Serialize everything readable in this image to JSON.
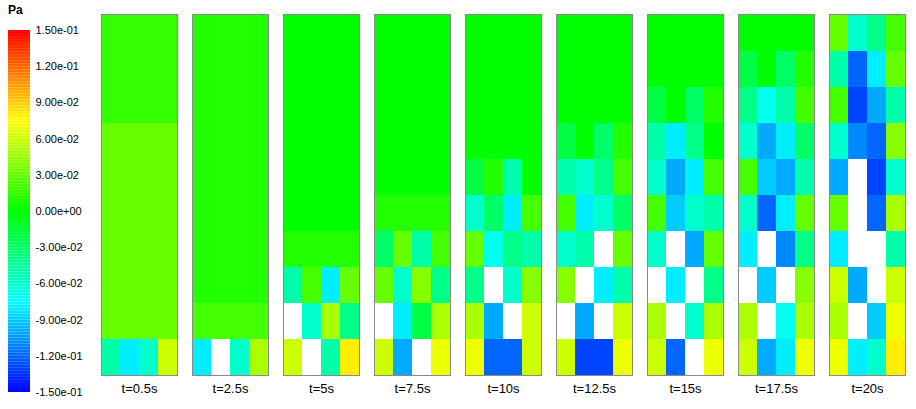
{
  "chart_data": {
    "type": "heatmap",
    "color_bar": {
      "title": "Pa",
      "lim": [
        -0.15,
        0.15
      ],
      "ticks": [
        {
          "value": 0.15,
          "label": "1.50e-01"
        },
        {
          "value": 0.12,
          "label": "1.20e-01"
        },
        {
          "value": 0.09,
          "label": "9.00e-02"
        },
        {
          "value": 0.06,
          "label": "6.00e-02"
        },
        {
          "value": 0.03,
          "label": "3.00e-02"
        },
        {
          "value": 0,
          "label": "0.00e+00"
        },
        {
          "value": -0.03,
          "label": "-3.00e-02"
        },
        {
          "value": -0.06,
          "label": "-6.00e-02"
        },
        {
          "value": -0.09,
          "label": "-9.00e-02"
        },
        {
          "value": -0.12,
          "label": "-1.20e-01"
        },
        {
          "value": -0.15,
          "label": "-1.50e-01"
        }
      ]
    },
    "panels": [
      {
        "label": "t=0.5s",
        "cells": [
          [
            0.015,
            0.015,
            0.015,
            0.015
          ],
          [
            0.015,
            0.015,
            0.015,
            0.015
          ],
          [
            0.015,
            0.015,
            0.015,
            0.015
          ],
          [
            0.03,
            0.03,
            0.03,
            0.03
          ],
          [
            0.03,
            0.03,
            0.03,
            0.03
          ],
          [
            0.03,
            0.03,
            0.03,
            0.03
          ],
          [
            0.03,
            0.03,
            0.03,
            0.03
          ],
          [
            0.03,
            0.03,
            0.03,
            0.03
          ],
          [
            0.03,
            0.03,
            0.03,
            0.03
          ],
          [
            -0.05,
            -0.08,
            -0.06,
            0.06
          ]
        ]
      },
      {
        "label": "t=2.5s",
        "cells": [
          [
            0.01,
            0.01,
            0.01,
            0.01
          ],
          [
            0.01,
            0.01,
            0.01,
            0.01
          ],
          [
            0.01,
            0.01,
            0.01,
            0.01
          ],
          [
            0.01,
            0.01,
            0.01,
            0.01
          ],
          [
            0.01,
            0.01,
            0.01,
            0.01
          ],
          [
            0.01,
            0.01,
            0.01,
            0.01
          ],
          [
            0.01,
            0.01,
            0.01,
            0.01
          ],
          [
            0.01,
            0.01,
            0.01,
            0.01
          ],
          [
            0.02,
            0.02,
            0.02,
            0.02
          ],
          [
            -0.08,
            null,
            -0.06,
            0.05
          ]
        ]
      },
      {
        "label": "t=5s",
        "cells": [
          [
            0,
            0,
            0,
            0
          ],
          [
            0,
            0,
            0,
            0
          ],
          [
            0,
            0,
            0,
            0
          ],
          [
            0,
            0,
            0,
            0
          ],
          [
            0,
            0,
            0,
            0
          ],
          [
            0,
            0,
            0,
            0
          ],
          [
            0.01,
            0.01,
            0.01,
            0.01
          ],
          [
            -0.05,
            0.02,
            -0.08,
            0.03
          ],
          [
            null,
            -0.06,
            0.05,
            -0.04
          ],
          [
            0.06,
            null,
            -0.05,
            0.08
          ]
        ]
      },
      {
        "label": "t=7.5s",
        "cells": [
          [
            0,
            0,
            0,
            0
          ],
          [
            0,
            0,
            0,
            0
          ],
          [
            0,
            0,
            0,
            0
          ],
          [
            0,
            0,
            0,
            0
          ],
          [
            0,
            0,
            0,
            0
          ],
          [
            0.01,
            0.01,
            0.01,
            0.01
          ],
          [
            -0.03,
            0.03,
            -0.05,
            0.02
          ],
          [
            0.03,
            -0.06,
            0.04,
            -0.04
          ],
          [
            null,
            -0.08,
            -0.02,
            0.05
          ],
          [
            0.06,
            -0.1,
            null,
            0.07
          ]
        ]
      },
      {
        "label": "t=10s",
        "cells": [
          [
            0,
            0,
            0,
            0
          ],
          [
            0,
            0,
            0,
            0
          ],
          [
            0,
            0,
            0,
            0
          ],
          [
            0,
            0,
            0,
            0
          ],
          [
            -0.02,
            0.01,
            -0.05,
            0
          ],
          [
            -0.06,
            -0.03,
            -0.08,
            0.02
          ],
          [
            0.03,
            -0.07,
            -0.04,
            -0.05
          ],
          [
            -0.04,
            null,
            -0.06,
            0.04
          ],
          [
            0.05,
            -0.1,
            null,
            0.06
          ],
          [
            0.07,
            -0.12,
            -0.12,
            0.06
          ]
        ]
      },
      {
        "label": "t=12.5s",
        "cells": [
          [
            0,
            0,
            0,
            0
          ],
          [
            0,
            0,
            0,
            0
          ],
          [
            0,
            0,
            0,
            0
          ],
          [
            -0.02,
            0,
            -0.03,
            0.01
          ],
          [
            -0.05,
            -0.06,
            -0.04,
            0.02
          ],
          [
            0.02,
            -0.08,
            -0.06,
            -0.03
          ],
          [
            -0.06,
            -0.05,
            null,
            0.03
          ],
          [
            0.04,
            null,
            -0.08,
            -0.05
          ],
          [
            null,
            -0.1,
            null,
            0.06
          ],
          [
            0.06,
            -0.13,
            -0.13,
            0.07
          ]
        ]
      },
      {
        "label": "t=15s",
        "cells": [
          [
            0,
            0,
            0,
            0
          ],
          [
            0,
            0,
            0,
            0
          ],
          [
            -0.02,
            0,
            -0.03,
            0.01
          ],
          [
            -0.05,
            -0.08,
            -0.04,
            0
          ],
          [
            -0.06,
            -0.1,
            -0.08,
            0.02
          ],
          [
            0.02,
            -0.09,
            -0.06,
            -0.05
          ],
          [
            -0.06,
            null,
            -0.1,
            0.03
          ],
          [
            null,
            -0.08,
            null,
            -0.04
          ],
          [
            0.05,
            null,
            -0.06,
            0.05
          ],
          [
            0.06,
            -0.12,
            null,
            0.07
          ]
        ]
      },
      {
        "label": "t=17.5s",
        "cells": [
          [
            0,
            0,
            0,
            0
          ],
          [
            -0.02,
            0,
            -0.03,
            0.01
          ],
          [
            -0.04,
            -0.07,
            -0.05,
            0.02
          ],
          [
            -0.06,
            -0.1,
            -0.08,
            -0.03
          ],
          [
            0.02,
            -0.09,
            -0.1,
            -0.05
          ],
          [
            -0.06,
            -0.12,
            -0.08,
            0.03
          ],
          [
            -0.08,
            null,
            -0.11,
            -0.04
          ],
          [
            null,
            -0.09,
            null,
            0.04
          ],
          [
            0.05,
            null,
            -0.07,
            0.05
          ],
          [
            0.06,
            -0.1,
            -0.08,
            0.07
          ]
        ]
      },
      {
        "label": "t=20s",
        "cells": [
          [
            0.03,
            -0.06,
            -0.04,
            0.02
          ],
          [
            -0.05,
            -0.12,
            -0.08,
            0.03
          ],
          [
            0.02,
            -0.13,
            -0.1,
            -0.05
          ],
          [
            -0.06,
            -0.11,
            -0.12,
            0.04
          ],
          [
            -0.1,
            null,
            -0.13,
            -0.06
          ],
          [
            0.03,
            null,
            -0.12,
            0.05
          ],
          [
            -0.08,
            null,
            null,
            -0.05
          ],
          [
            0.06,
            -0.1,
            null,
            0.06
          ],
          [
            0.05,
            null,
            -0.09,
            0.07
          ],
          [
            0.07,
            -0.08,
            -0.06,
            0.08
          ]
        ]
      }
    ]
  }
}
